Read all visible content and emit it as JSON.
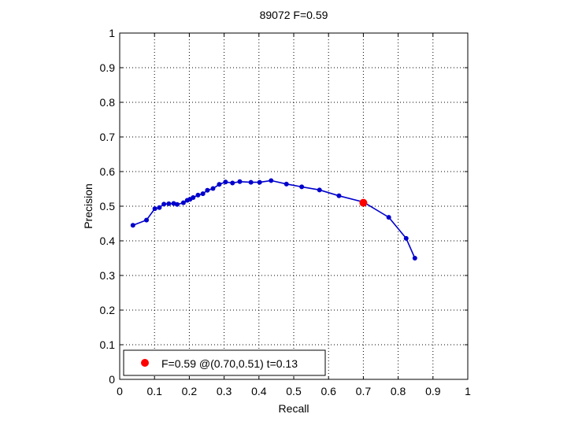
{
  "chart_data": {
    "type": "line",
    "title": "89072 F=0.59",
    "xlabel": "Recall",
    "ylabel": "Precision",
    "xlim": [
      0,
      1
    ],
    "ylim": [
      0,
      1
    ],
    "xticks": [
      0,
      0.1,
      0.2,
      0.3,
      0.4,
      0.5,
      0.6,
      0.7,
      0.8,
      0.9,
      1
    ],
    "yticks": [
      0,
      0.1,
      0.2,
      0.3,
      0.4,
      0.5,
      0.6,
      0.7,
      0.8,
      0.9,
      1
    ],
    "xtick_labels": [
      "0",
      "0.1",
      "0.2",
      "0.3",
      "0.4",
      "0.5",
      "0.6",
      "0.7",
      "0.8",
      "0.9",
      "1"
    ],
    "ytick_labels": [
      "0",
      "0.1",
      "0.2",
      "0.3",
      "0.4",
      "0.5",
      "0.6",
      "0.7",
      "0.8",
      "0.9",
      "1"
    ],
    "grid": true,
    "legend_position": "bottom-left",
    "series": [
      {
        "color": "#0000cc",
        "x": [
          0.848,
          0.823,
          0.773,
          0.7,
          0.63,
          0.574,
          0.523,
          0.479,
          0.435,
          0.402,
          0.377,
          0.345,
          0.324,
          0.304,
          0.286,
          0.268,
          0.252,
          0.239,
          0.225,
          0.211,
          0.202,
          0.194,
          0.183,
          0.165,
          0.155,
          0.141,
          0.127,
          0.114,
          0.101,
          0.077,
          0.038
        ],
        "y": [
          0.35,
          0.407,
          0.468,
          0.512,
          0.53,
          0.547,
          0.556,
          0.564,
          0.574,
          0.569,
          0.569,
          0.571,
          0.567,
          0.57,
          0.563,
          0.551,
          0.546,
          0.536,
          0.532,
          0.525,
          0.52,
          0.517,
          0.51,
          0.505,
          0.508,
          0.507,
          0.506,
          0.496,
          0.493,
          0.46,
          0.445
        ]
      }
    ],
    "highlight_point": {
      "x": 0.7,
      "y": 0.51,
      "color": "#ff0000"
    },
    "legend": {
      "label": "F=0.59 @(0.70,0.51) t=0.13",
      "marker_color": "#ff0000"
    }
  }
}
